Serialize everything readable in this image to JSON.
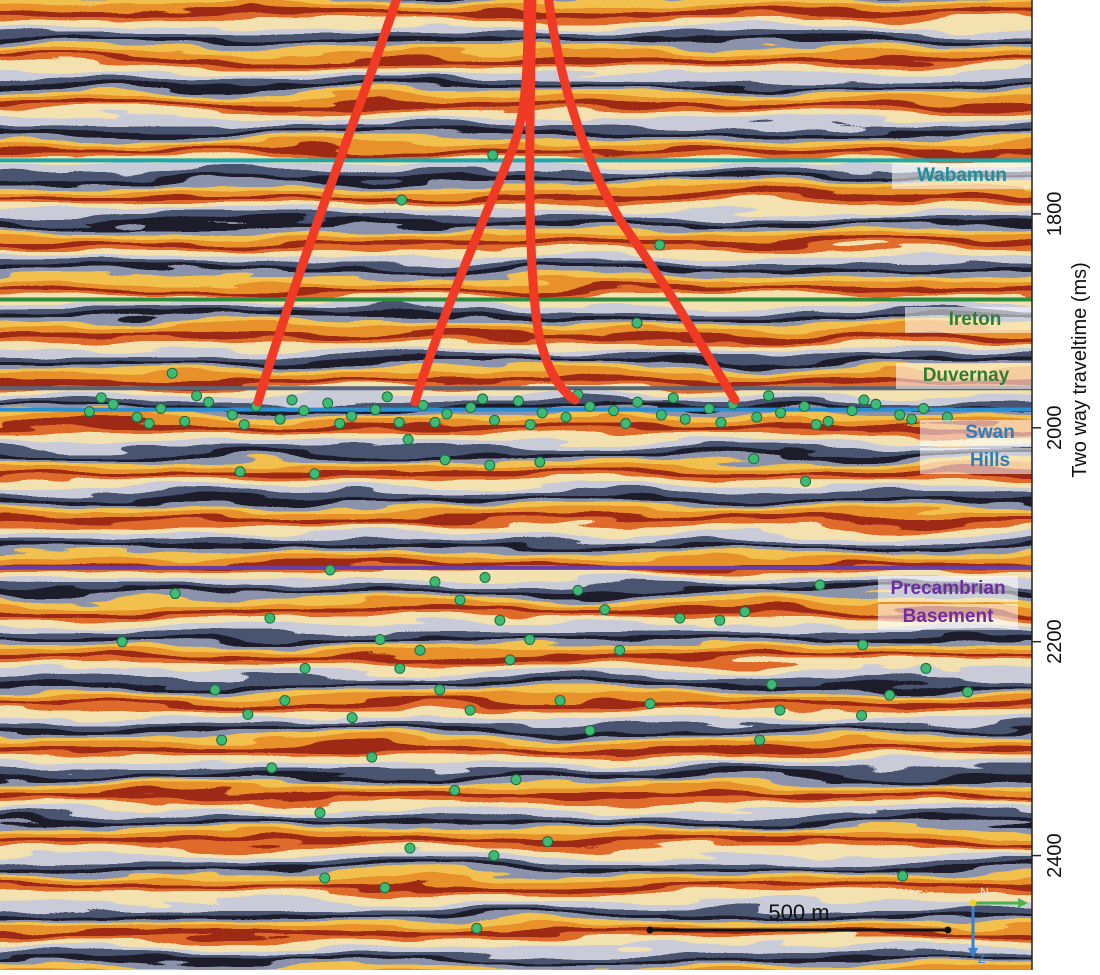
{
  "chart_data": {
    "type": "scatter",
    "y_label": "Two way traveltime (ms)",
    "ylim": [
      1600,
      2507
    ],
    "yticks": [
      1800,
      2000,
      2200,
      2400
    ],
    "xlim": [
      0,
      1732
    ],
    "horizons": [
      {
        "name": "Wabamun",
        "label_lines": [
          "Wabamun"
        ],
        "time": 1750,
        "color": "#1fa8aa"
      },
      {
        "name": "Ireton",
        "label_lines": [
          "Ireton"
        ],
        "time": 1880,
        "color": "#2e8a3c"
      },
      {
        "name": "Duvernay",
        "label_lines": [
          "Duvernay"
        ],
        "time": 1963,
        "color": "#5a6478"
      },
      {
        "name": "Swan Hills",
        "label_lines": [
          "Swan",
          "Hills"
        ],
        "time": 1983,
        "color": "#2a8fd0"
      },
      {
        "name": "Precambrian Basement",
        "label_lines": [
          "Precambrian",
          "Basement"
        ],
        "time": 2131,
        "color": "#6c3ea0"
      }
    ],
    "label_colors": [
      "#1f8f9a",
      "#2e7d32",
      "#2e7d32",
      "#2a7fc0",
      "#6c2ea0"
    ],
    "series": [
      {
        "color": "#3dba74",
        "x": [
          150,
          190,
          230,
          270,
          310,
          350,
          390,
          430,
          470,
          510,
          550,
          590,
          630,
          670,
          710,
          750,
          790,
          830,
          870,
          910,
          950,
          990,
          1030,
          1070,
          1110,
          1150,
          1190,
          1230,
          1270,
          1310,
          1350,
          1390,
          1430,
          1470,
          1510,
          1550,
          1590,
          170,
          250,
          330,
          410,
          490,
          570,
          650,
          730,
          810,
          890,
          970,
          1050,
          1130,
          1210,
          1290,
          1370,
          1450,
          1530,
          827,
          674,
          1107,
          1069,
          289,
          403,
          528,
          1352,
          1265,
          747,
          822,
          906,
          685,
          205,
          294,
          361,
          416,
          372,
          456,
          537,
          545,
          646,
          688,
          800,
          829,
          919,
          866,
          763,
          624,
          591,
          512,
          453,
          554,
          730,
          772,
          814,
          839,
          705,
          738,
          789,
          856,
          889,
          940,
          970,
          1015,
          1040,
          1091,
          1141,
          1208,
          1250,
          1295,
          1309,
          1376,
          1448,
          1446,
          1493,
          1554,
          1624,
          1515,
          1275,
          990,
          671,
          638,
          478
        ],
        "values": [
          1985,
          1978,
          1990,
          1982,
          1994,
          1976,
          1988,
          1980,
          1992,
          1984,
          1977,
          1989,
          1983,
          1995,
          1979,
          1987,
          1981,
          1993,
          1975,
          1986,
          1990,
          1980,
          1984,
          1976,
          1988,
          1992,
          1982,
          1978,
          1990,
          1986,
          1980,
          1994,
          1984,
          1978,
          1988,
          1982,
          1990,
          1972,
          1996,
          1970,
          1997,
          1974,
          1996,
          1971,
          1995,
          1973,
          1997,
          1969,
          1996,
          1972,
          1995,
          1970,
          1997,
          1974,
          1992,
          1745,
          1787,
          1829,
          1902,
          1949,
          2041,
          2043,
          2050,
          2029,
          2030,
          2035,
          2032,
          2011,
          2200,
          2155,
          2245,
          2268,
          2292,
          2318,
          2360,
          2421,
          2430,
          2393,
          2468,
          2400,
          2387,
          2329,
          2339,
          2308,
          2271,
          2225,
          2178,
          2133,
          2144,
          2161,
          2140,
          2180,
          2208,
          2245,
          2264,
          2217,
          2198,
          2255,
          2152,
          2170,
          2208,
          2258,
          2178,
          2180,
          2172,
          2240,
          2264,
          2147,
          2203,
          2269,
          2250,
          2225,
          2247,
          2419,
          2292,
          2283,
          2225,
          2198,
          2255
        ]
      }
    ],
    "scale_bar": {
      "length": 500,
      "label": "500 m"
    },
    "orientation": {
      "north": "N",
      "down": "Z"
    }
  }
}
